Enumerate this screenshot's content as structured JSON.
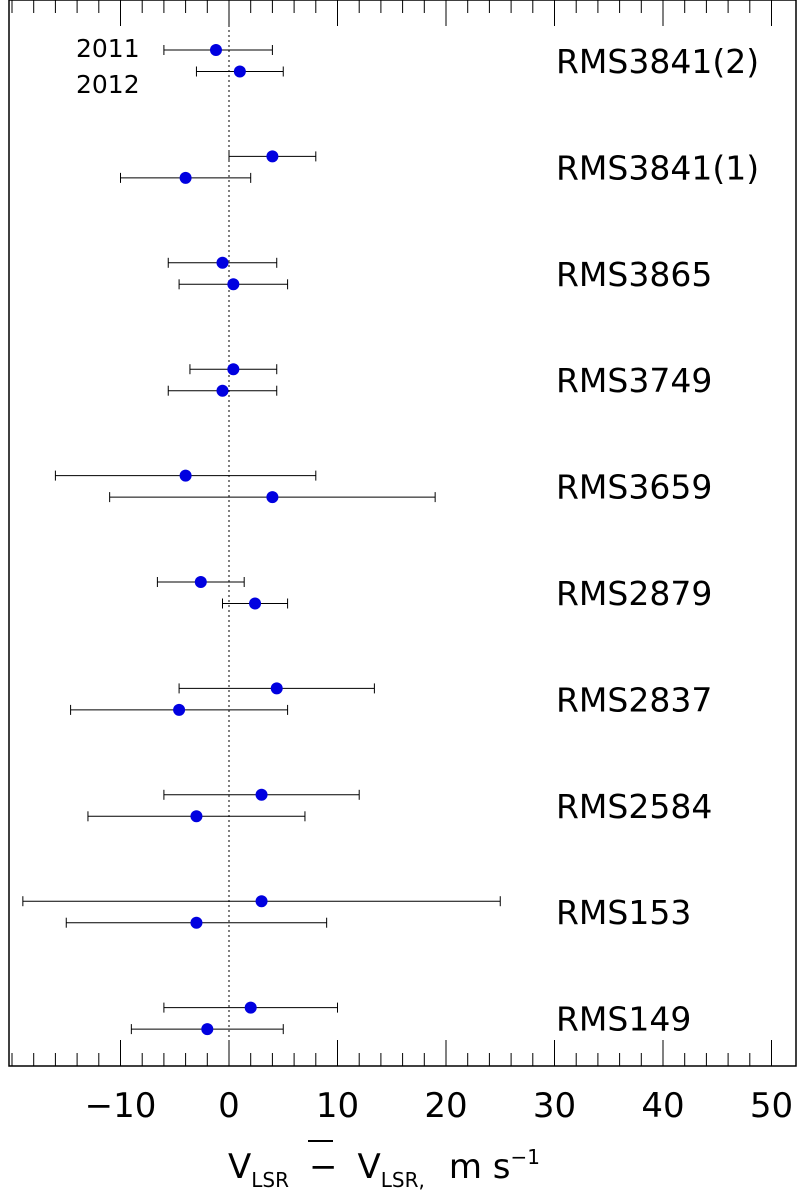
{
  "chart_data": {
    "type": "scatter",
    "title": "",
    "xlabel": "V_LSR − V̄_LSR, m s⁻¹",
    "xlabel_parts": {
      "v1": "V",
      "sub1": "LSR",
      "minus": "−",
      "v2": "V",
      "sub2": "LSR",
      "comma": ",",
      "unit": "m s",
      "sup": "−1"
    },
    "ylabel": "",
    "xlim": [
      -20,
      50
    ],
    "xticks": [
      -10,
      0,
      10,
      20,
      30,
      40,
      50
    ],
    "xtick_labels": [
      "−10",
      "0",
      "10",
      "20",
      "30",
      "40",
      "50"
    ],
    "minor_tick_step": 2,
    "grid": false,
    "reference_line": {
      "x": 0,
      "style": "dotted"
    },
    "marker_color": "#0000e0",
    "series_annotations": [
      "2011",
      "2012"
    ],
    "sources": [
      {
        "name": "RMS3841(2)",
        "points": [
          {
            "x": -1.2,
            "lo": -6,
            "hi": 4
          },
          {
            "x": 1,
            "lo": -3,
            "hi": 5
          }
        ]
      },
      {
        "name": "RMS3841(1)",
        "points": [
          {
            "x": 4,
            "lo": 0,
            "hi": 8
          },
          {
            "x": -4,
            "lo": -10,
            "hi": 2
          }
        ]
      },
      {
        "name": "RMS3865",
        "points": [
          {
            "x": -0.6,
            "lo": -5.6,
            "hi": 4.4
          },
          {
            "x": 0.4,
            "lo": -4.6,
            "hi": 5.4
          }
        ]
      },
      {
        "name": "RMS3749",
        "points": [
          {
            "x": 0.4,
            "lo": -3.6,
            "hi": 4.4
          },
          {
            "x": -0.6,
            "lo": -5.6,
            "hi": 4.4
          }
        ]
      },
      {
        "name": "RMS3659",
        "points": [
          {
            "x": -4,
            "lo": -16,
            "hi": 8
          },
          {
            "x": 4,
            "lo": -11,
            "hi": 19
          }
        ]
      },
      {
        "name": "RMS2879",
        "points": [
          {
            "x": -2.6,
            "lo": -6.6,
            "hi": 1.4
          },
          {
            "x": 2.4,
            "lo": -0.6,
            "hi": 5.4
          }
        ]
      },
      {
        "name": "RMS2837",
        "points": [
          {
            "x": 4.4,
            "lo": -4.6,
            "hi": 13.4
          },
          {
            "x": -4.6,
            "lo": -14.6,
            "hi": 5.4
          }
        ]
      },
      {
        "name": "RMS2584",
        "points": [
          {
            "x": 3,
            "lo": -6,
            "hi": 12
          },
          {
            "x": -3,
            "lo": -13,
            "hi": 7
          }
        ]
      },
      {
        "name": "RMS153",
        "points": [
          {
            "x": 3,
            "lo": -19,
            "hi": 25
          },
          {
            "x": -3,
            "lo": -15,
            "hi": 9
          }
        ]
      },
      {
        "name": "RMS149",
        "points": [
          {
            "x": 2,
            "lo": -6,
            "hi": 10
          },
          {
            "x": -2,
            "lo": -9,
            "hi": 5
          }
        ]
      }
    ]
  }
}
